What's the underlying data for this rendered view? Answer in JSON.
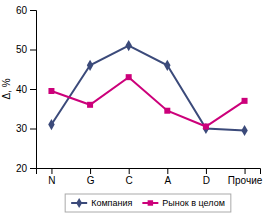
{
  "chart_data": {
    "type": "line",
    "categories": [
      "N",
      "G",
      "C",
      "A",
      "D",
      "Прочие"
    ],
    "series": [
      {
        "name": "Компания",
        "color": "#3b4a7a",
        "marker": "diamond",
        "values": [
          31,
          46,
          51,
          46,
          30,
          29.5
        ]
      },
      {
        "name": "Рынок в целом",
        "color": "#cc007a",
        "marker": "square",
        "values": [
          39.5,
          36,
          43,
          34.5,
          30.5,
          37
        ]
      }
    ],
    "ylabel": "Δ, %",
    "ylim": [
      20,
      60
    ],
    "yticks": [
      20,
      30,
      40,
      50,
      60
    ],
    "grid": false,
    "legend": "bottom"
  }
}
